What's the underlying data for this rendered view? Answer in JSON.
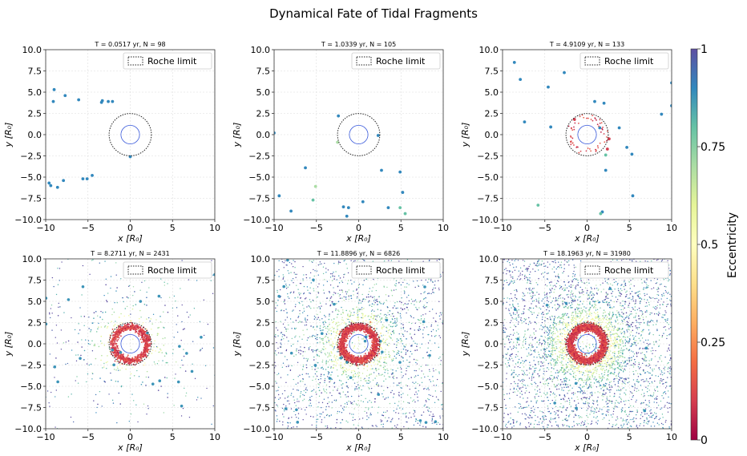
{
  "figure": {
    "title": "Dynamical Fate of Tidal Fragments",
    "colorbar": {
      "label": "Eccentricity",
      "ticks": [
        "0",
        "0.25",
        "0.5",
        "0.75",
        "1"
      ],
      "tick_values": [
        0,
        0.25,
        0.5,
        0.75,
        1
      ],
      "colormap": "Spectral",
      "colors": [
        "#9e0142",
        "#d53e4f",
        "#f46d43",
        "#fdae61",
        "#fee08b",
        "#ffffbf",
        "#e6f598",
        "#abdda4",
        "#66c2a5",
        "#3288bd",
        "#5e4fa2"
      ]
    },
    "legend_label": "Roche limit",
    "tick_label_text": [
      "−10.0",
      "−7.5",
      "−5.0",
      "−2.5",
      "0.0",
      "2.5",
      "5.0",
      "7.5",
      "10.0"
    ],
    "xtick_label_text": [
      "−10",
      "−5",
      "0",
      "5",
      "10"
    ]
  },
  "chart_data": [
    {
      "type": "scatter",
      "subtitle": "T = 0.0517 yr, N = 98",
      "xlabel": "x [R₀]",
      "ylabel": "y [R₀]",
      "xlim": [
        -10,
        10
      ],
      "ylim": [
        -10,
        10
      ],
      "grid": true,
      "legend": "top-right",
      "roche_radius": 2.5,
      "planet_radius": 1.1,
      "scatter": false,
      "points": [
        {
          "x": -9.0,
          "y": 5.3,
          "e": 0.9
        },
        {
          "x": -9.1,
          "y": 3.9,
          "e": 0.9
        },
        {
          "x": -7.7,
          "y": 4.6,
          "e": 0.9
        },
        {
          "x": -6.1,
          "y": 4.1,
          "e": 0.9
        },
        {
          "x": -3.4,
          "y": 3.8,
          "e": 0.9
        },
        {
          "x": -3.3,
          "y": 4.0,
          "e": 0.9
        },
        {
          "x": -2.6,
          "y": 3.9,
          "e": 0.9
        },
        {
          "x": -2.1,
          "y": 3.9,
          "e": 0.9
        },
        {
          "x": -9.6,
          "y": -5.7,
          "e": 0.9
        },
        {
          "x": -9.4,
          "y": -6.0,
          "e": 0.9
        },
        {
          "x": -8.6,
          "y": -6.2,
          "e": 0.9
        },
        {
          "x": -7.9,
          "y": -5.4,
          "e": 0.9
        },
        {
          "x": -5.6,
          "y": -5.2,
          "e": 0.9
        },
        {
          "x": -5.1,
          "y": -5.2,
          "e": 0.9
        },
        {
          "x": -4.5,
          "y": -4.8,
          "e": 0.9
        },
        {
          "x": 0.0,
          "y": -2.6,
          "e": 0.9
        }
      ]
    },
    {
      "type": "scatter",
      "subtitle": "T = 1.0339 yr, N = 105",
      "xlabel": "x [R₀]",
      "ylabel": "y [R₀]",
      "xlim": [
        -10,
        10
      ],
      "ylim": [
        -10,
        10
      ],
      "grid": true,
      "legend": "top-right",
      "roche_radius": 2.5,
      "planet_radius": 1.1,
      "scatter": false,
      "points": [
        {
          "x": -10.0,
          "y": 0.2,
          "e": 0.9
        },
        {
          "x": -2.4,
          "y": 2.2,
          "e": 0.9
        },
        {
          "x": -2.5,
          "y": -0.9,
          "e": 0.7
        },
        {
          "x": 2.3,
          "y": -0.1,
          "e": 0.9
        },
        {
          "x": -6.3,
          "y": -3.9,
          "e": 0.9
        },
        {
          "x": -9.4,
          "y": -7.2,
          "e": 0.9
        },
        {
          "x": -8.0,
          "y": -9.0,
          "e": 0.9
        },
        {
          "x": -5.4,
          "y": -7.7,
          "e": 0.8
        },
        {
          "x": -5.1,
          "y": -6.1,
          "e": 0.7
        },
        {
          "x": -1.8,
          "y": -8.5,
          "e": 0.9
        },
        {
          "x": -1.2,
          "y": -8.6,
          "e": 0.9
        },
        {
          "x": -1.4,
          "y": -9.6,
          "e": 0.9
        },
        {
          "x": 0.5,
          "y": -7.9,
          "e": 0.9
        },
        {
          "x": 2.7,
          "y": -4.2,
          "e": 0.9
        },
        {
          "x": 3.5,
          "y": -8.6,
          "e": 0.9
        },
        {
          "x": 4.9,
          "y": -4.4,
          "e": 0.9
        },
        {
          "x": 5.2,
          "y": -6.8,
          "e": 0.9
        },
        {
          "x": 5.5,
          "y": -9.3,
          "e": 0.8
        },
        {
          "x": 4.9,
          "y": -8.6,
          "e": 0.8
        }
      ]
    },
    {
      "type": "scatter",
      "subtitle": "T = 4.9109 yr, N = 133",
      "xlabel": "x [R₀]",
      "ylabel": "y [R₀]",
      "xlim": [
        -10,
        10
      ],
      "ylim": [
        -10,
        10
      ],
      "grid": true,
      "legend": "top-right",
      "roche_radius": 2.5,
      "planet_radius": 1.1,
      "scatter": {
        "n_outer": 0,
        "n_ring": 60,
        "n_mid": 0,
        "n_big": 0,
        "seed": 7
      },
      "points": [
        {
          "x": -8.6,
          "y": 8.5,
          "e": 0.9
        },
        {
          "x": -7.9,
          "y": 6.5,
          "e": 0.9
        },
        {
          "x": -2.7,
          "y": 7.3,
          "e": 0.9
        },
        {
          "x": -4.6,
          "y": 5.6,
          "e": 0.9
        },
        {
          "x": -7.4,
          "y": 1.5,
          "e": 0.9
        },
        {
          "x": -4.3,
          "y": 0.9,
          "e": 0.9
        },
        {
          "x": 0.9,
          "y": 3.9,
          "e": 0.9
        },
        {
          "x": 2.0,
          "y": 3.7,
          "e": 0.9
        },
        {
          "x": 1.5,
          "y": 0.8,
          "e": 0.9
        },
        {
          "x": 3.8,
          "y": 0.8,
          "e": 0.9
        },
        {
          "x": 8.8,
          "y": 2.4,
          "e": 0.9
        },
        {
          "x": 10.0,
          "y": 3.4,
          "e": 0.9
        },
        {
          "x": 10.0,
          "y": 6.1,
          "e": 0.9
        },
        {
          "x": 4.7,
          "y": -1.5,
          "e": 0.9
        },
        {
          "x": 5.3,
          "y": -2.3,
          "e": 0.9
        },
        {
          "x": 2.2,
          "y": -4.2,
          "e": 0.9
        },
        {
          "x": 2.2,
          "y": -2.4,
          "e": 0.8
        },
        {
          "x": 5.4,
          "y": -7.2,
          "e": 0.9
        },
        {
          "x": -5.8,
          "y": -8.3,
          "e": 0.8
        },
        {
          "x": 1.8,
          "y": -9.1,
          "e": 0.9
        },
        {
          "x": 1.6,
          "y": -9.3,
          "e": 0.8
        },
        {
          "x": -1.5,
          "y": 1.8,
          "e": 0.1
        },
        {
          "x": 2.4,
          "y": -1.7,
          "e": 0.1
        },
        {
          "x": 2.6,
          "y": -0.5,
          "e": 0.1
        }
      ]
    },
    {
      "type": "scatter",
      "subtitle": "T = 8.2711 yr, N = 2431",
      "xlabel": "x [R₀]",
      "ylabel": "y [R₀]",
      "xlim": [
        -10,
        10
      ],
      "ylim": [
        -10,
        10
      ],
      "grid": true,
      "legend": "top-right",
      "roche_radius": 2.5,
      "planet_radius": 1.1,
      "scatter": {
        "n_outer": 260,
        "n_ring": 900,
        "n_mid": 160,
        "n_big": 22,
        "seed": 11
      },
      "points": []
    },
    {
      "type": "scatter",
      "subtitle": "T = 11.8896 yr, N = 6826",
      "xlabel": "x [R₀]",
      "ylabel": "y [R₀]",
      "xlim": [
        -10,
        10
      ],
      "ylim": [
        -10,
        10
      ],
      "grid": true,
      "legend": "top-right",
      "roche_radius": 2.5,
      "planet_radius": 1.1,
      "scatter": {
        "n_outer": 1500,
        "n_ring": 1600,
        "n_mid": 500,
        "n_big": 30,
        "seed": 23
      },
      "points": []
    },
    {
      "type": "scatter",
      "subtitle": "T = 18.1963 yr, N = 31980",
      "xlabel": "x [R₀]",
      "ylabel": "y [R₀]",
      "xlim": [
        -10,
        10
      ],
      "ylim": [
        -10,
        10
      ],
      "grid": true,
      "legend": "top-right",
      "roche_radius": 2.5,
      "planet_radius": 1.1,
      "scatter": {
        "n_outer": 2600,
        "n_ring": 2200,
        "n_mid": 900,
        "n_big": 10,
        "seed": 37
      },
      "points": []
    }
  ]
}
